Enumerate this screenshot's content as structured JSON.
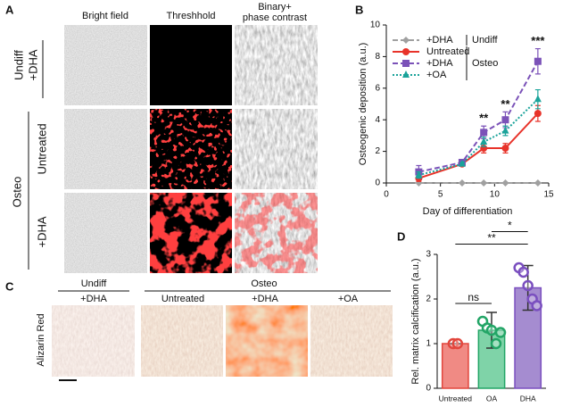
{
  "panel_a": {
    "label": "A",
    "columns": [
      "Bright field",
      "Threshhold",
      [
        "Binary+",
        "phase contrast"
      ]
    ],
    "rows": {
      "undiff": "Undiff",
      "undiff_dha": "+DHA",
      "osteo": "Osteo",
      "untreated": "Untreated",
      "osteo_dha": "+DHA"
    }
  },
  "panel_c": {
    "label": "C",
    "undiff": "Undiff",
    "undiff_dha": "+DHA",
    "osteo": "Osteo",
    "columns": [
      "Untreated",
      "+DHA",
      "+OA"
    ],
    "stain": "Alizarin Red"
  },
  "chart_data": [
    {
      "type": "line",
      "panel_label": "B",
      "xlabel": "Day of differentiation",
      "ylabel": "Osteogenic deposition (a.u.)",
      "x": [
        3,
        7,
        9,
        11,
        14
      ],
      "xlim": [
        0,
        15
      ],
      "xticks": [
        0,
        5,
        10,
        15
      ],
      "ylim": [
        0,
        10
      ],
      "yticks": [
        0,
        2,
        4,
        6,
        8,
        10
      ],
      "series": [
        {
          "name": "+DHA",
          "group": "Undiff",
          "color": "#a0a0a0",
          "dash": "dashed",
          "marker": "diamond",
          "values": [
            0,
            0,
            0,
            0,
            0
          ],
          "errors": [
            0,
            0,
            0,
            0,
            0
          ]
        },
        {
          "name": "Untreated",
          "group": "Osteo",
          "color": "#e8332a",
          "dash": "solid",
          "marker": "circle",
          "values": [
            0.3,
            1.2,
            2.2,
            2.2,
            4.4
          ],
          "errors": [
            0.2,
            0.1,
            0.3,
            0.3,
            0.5
          ]
        },
        {
          "name": "+DHA",
          "group": "Osteo",
          "color": "#7b52b8",
          "dash": "dashed",
          "marker": "square",
          "values": [
            0.7,
            1.3,
            3.2,
            4,
            7.7
          ],
          "errors": [
            0.4,
            0.15,
            0.4,
            0.5,
            0.8
          ]
        },
        {
          "name": "+OA",
          "group": "Osteo",
          "color": "#1aa39a",
          "dash": "dotted",
          "marker": "triangle",
          "values": [
            0.5,
            1.2,
            2.6,
            3.3,
            5.3
          ],
          "errors": [
            0.2,
            0.1,
            0.3,
            0.3,
            0.6
          ]
        }
      ],
      "annotations": [
        {
          "text": "**",
          "x": 9
        },
        {
          "text": "**",
          "x": 11
        },
        {
          "text": "***",
          "x": 14
        }
      ]
    },
    {
      "type": "bar",
      "panel_label": "D",
      "ylabel": "Rel. matrix calcification (a.u.)",
      "categories": [
        "Untreated",
        "OA",
        "DHA"
      ],
      "values": [
        1,
        1.3,
        2.25
      ],
      "errors": [
        0,
        0.4,
        0.5
      ],
      "colors": [
        "#f08a84",
        "#7fd3a8",
        "#a58cd0"
      ],
      "edge_colors": [
        "#e2463d",
        "#22a566",
        "#7a4fbf"
      ],
      "points": [
        [
          1,
          1
        ],
        [
          1.5,
          1.35,
          1.3,
          1.0,
          1.25
        ],
        [
          2.7,
          2.6,
          2.3,
          2.0,
          1.85
        ]
      ],
      "ylim": [
        0,
        3
      ],
      "yticks": [
        0,
        1,
        2,
        3
      ],
      "comparisons": [
        {
          "text": "ns",
          "between": [
            "Untreated",
            "OA"
          ]
        },
        {
          "text": "**",
          "between": [
            "Untreated",
            "DHA"
          ]
        },
        {
          "text": "*",
          "between": [
            "OA",
            "DHA"
          ]
        }
      ]
    }
  ]
}
